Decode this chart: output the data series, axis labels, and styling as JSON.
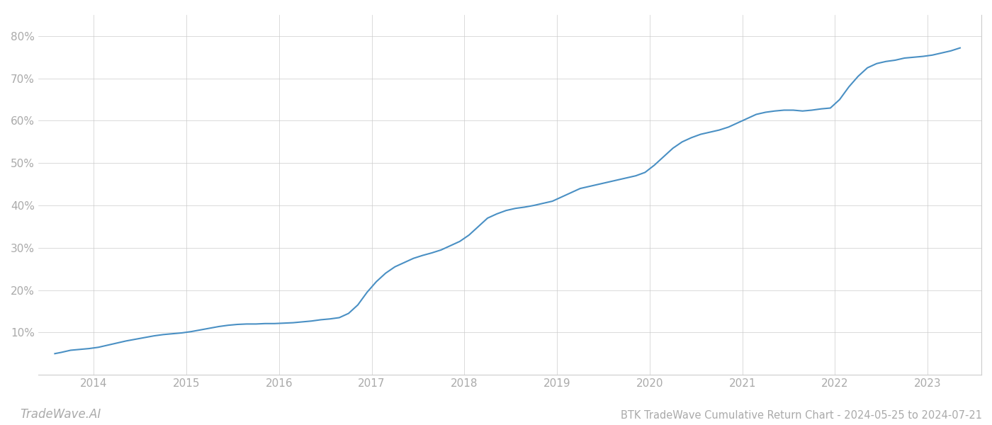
{
  "title": "BTK TradeWave Cumulative Return Chart - 2024-05-25 to 2024-07-21",
  "watermark": "TradeWave.AI",
  "line_color": "#4a90c4",
  "background_color": "#ffffff",
  "grid_color": "#cccccc",
  "x_values": [
    2013.58,
    2013.65,
    2013.75,
    2013.85,
    2013.95,
    2014.05,
    2014.15,
    2014.25,
    2014.35,
    2014.45,
    2014.55,
    2014.65,
    2014.75,
    2014.85,
    2014.95,
    2015.05,
    2015.15,
    2015.25,
    2015.35,
    2015.45,
    2015.55,
    2015.65,
    2015.75,
    2015.85,
    2015.95,
    2016.05,
    2016.15,
    2016.25,
    2016.35,
    2016.45,
    2016.55,
    2016.65,
    2016.75,
    2016.85,
    2016.95,
    2017.05,
    2017.15,
    2017.25,
    2017.35,
    2017.45,
    2017.55,
    2017.65,
    2017.75,
    2017.85,
    2017.95,
    2018.05,
    2018.15,
    2018.25,
    2018.35,
    2018.45,
    2018.55,
    2018.65,
    2018.75,
    2018.85,
    2018.95,
    2019.05,
    2019.15,
    2019.25,
    2019.35,
    2019.45,
    2019.55,
    2019.65,
    2019.75,
    2019.85,
    2019.95,
    2020.05,
    2020.15,
    2020.25,
    2020.35,
    2020.45,
    2020.55,
    2020.65,
    2020.75,
    2020.85,
    2020.95,
    2021.05,
    2021.15,
    2021.25,
    2021.35,
    2021.45,
    2021.55,
    2021.65,
    2021.75,
    2021.85,
    2021.95,
    2022.05,
    2022.15,
    2022.25,
    2022.35,
    2022.45,
    2022.55,
    2022.65,
    2022.75,
    2022.85,
    2022.95,
    2023.05,
    2023.15,
    2023.25,
    2023.35
  ],
  "y_values": [
    5.0,
    5.3,
    5.8,
    6.0,
    6.2,
    6.5,
    7.0,
    7.5,
    8.0,
    8.4,
    8.8,
    9.2,
    9.5,
    9.7,
    9.9,
    10.2,
    10.6,
    11.0,
    11.4,
    11.7,
    11.9,
    12.0,
    12.0,
    12.1,
    12.1,
    12.2,
    12.3,
    12.5,
    12.7,
    13.0,
    13.2,
    13.5,
    14.5,
    16.5,
    19.5,
    22.0,
    24.0,
    25.5,
    26.5,
    27.5,
    28.2,
    28.8,
    29.5,
    30.5,
    31.5,
    33.0,
    35.0,
    37.0,
    38.0,
    38.8,
    39.3,
    39.6,
    40.0,
    40.5,
    41.0,
    42.0,
    43.0,
    44.0,
    44.5,
    45.0,
    45.5,
    46.0,
    46.5,
    47.0,
    47.8,
    49.5,
    51.5,
    53.5,
    55.0,
    56.0,
    56.8,
    57.3,
    57.8,
    58.5,
    59.5,
    60.5,
    61.5,
    62.0,
    62.3,
    62.5,
    62.5,
    62.3,
    62.5,
    62.8,
    63.0,
    65.0,
    68.0,
    70.5,
    72.5,
    73.5,
    74.0,
    74.3,
    74.8,
    75.0,
    75.2,
    75.5,
    76.0,
    76.5,
    77.2
  ],
  "xlim": [
    2013.4,
    2023.58
  ],
  "ylim": [
    0,
    85
  ],
  "yticks": [
    10,
    20,
    30,
    40,
    50,
    60,
    70,
    80
  ],
  "xticks": [
    2014,
    2015,
    2016,
    2017,
    2018,
    2019,
    2020,
    2021,
    2022,
    2023
  ],
  "line_width": 1.5,
  "title_fontsize": 10.5,
  "tick_fontsize": 11,
  "watermark_fontsize": 12,
  "tick_color": "#aaaaaa",
  "spine_color": "#cccccc"
}
